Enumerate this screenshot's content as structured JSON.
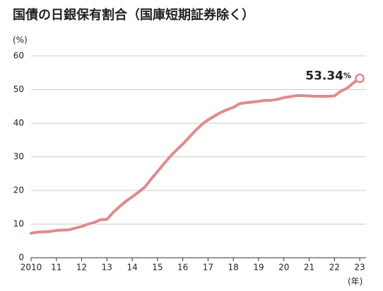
{
  "chart_data": {
    "type": "line",
    "title": "国債の日銀保有割合（国庫短期証券除く）",
    "y_axis_label": "(%)",
    "x_axis_label": "(年)",
    "x": [
      2010.0,
      2010.25,
      2010.5,
      2010.75,
      2011.0,
      2011.25,
      2011.5,
      2011.75,
      2012.0,
      2012.25,
      2012.5,
      2012.75,
      2013.0,
      2013.25,
      2013.5,
      2013.75,
      2014.0,
      2014.25,
      2014.5,
      2014.75,
      2015.0,
      2015.25,
      2015.5,
      2015.75,
      2016.0,
      2016.25,
      2016.5,
      2016.75,
      2017.0,
      2017.25,
      2017.5,
      2017.75,
      2018.0,
      2018.25,
      2018.5,
      2018.75,
      2019.0,
      2019.25,
      2019.5,
      2019.75,
      2020.0,
      2020.25,
      2020.5,
      2020.75,
      2021.0,
      2021.25,
      2021.5,
      2021.75,
      2022.0,
      2022.25,
      2022.5,
      2022.75,
      2023.0
    ],
    "series": [
      {
        "color": "#e08a8c",
        "values": [
          7.3,
          7.6,
          7.7,
          7.8,
          8.1,
          8.2,
          8.3,
          8.8,
          9.3,
          10.0,
          10.5,
          11.3,
          11.4,
          13.5,
          15.2,
          16.8,
          18.1,
          19.5,
          21.0,
          23.4,
          25.6,
          27.9,
          30.1,
          32.0,
          33.8,
          35.8,
          37.8,
          39.6,
          41.0,
          42.1,
          43.2,
          44.0,
          44.7,
          45.8,
          46.1,
          46.3,
          46.5,
          46.8,
          46.8,
          47.1,
          47.6,
          47.9,
          48.2,
          48.2,
          48.1,
          48.0,
          48.0,
          48.0,
          48.1,
          49.5,
          50.4,
          52.0,
          53.34
        ]
      }
    ],
    "end_label": {
      "text": "53.34",
      "unit": "%"
    },
    "xlim": [
      2010,
      2023.25
    ],
    "xticks": [
      2010,
      {
        "value": 2011,
        "label": "11"
      },
      {
        "value": 2012,
        "label": "12"
      },
      {
        "value": 2013,
        "label": "13"
      },
      {
        "value": 2014,
        "label": "14"
      },
      {
        "value": 2015,
        "label": "15"
      },
      {
        "value": 2016,
        "label": "16"
      },
      {
        "value": 2017,
        "label": "17"
      },
      {
        "value": 2018,
        "label": "18"
      },
      {
        "value": 2019,
        "label": "19"
      },
      {
        "value": 2020,
        "label": "20"
      },
      {
        "value": 2021,
        "label": "21"
      },
      {
        "value": 2022,
        "label": "22"
      },
      {
        "value": 2023,
        "label": "23"
      }
    ],
    "ylim": [
      0,
      60
    ],
    "yticks": [
      0,
      10,
      20,
      30,
      40,
      50,
      60
    ],
    "grid": true
  }
}
